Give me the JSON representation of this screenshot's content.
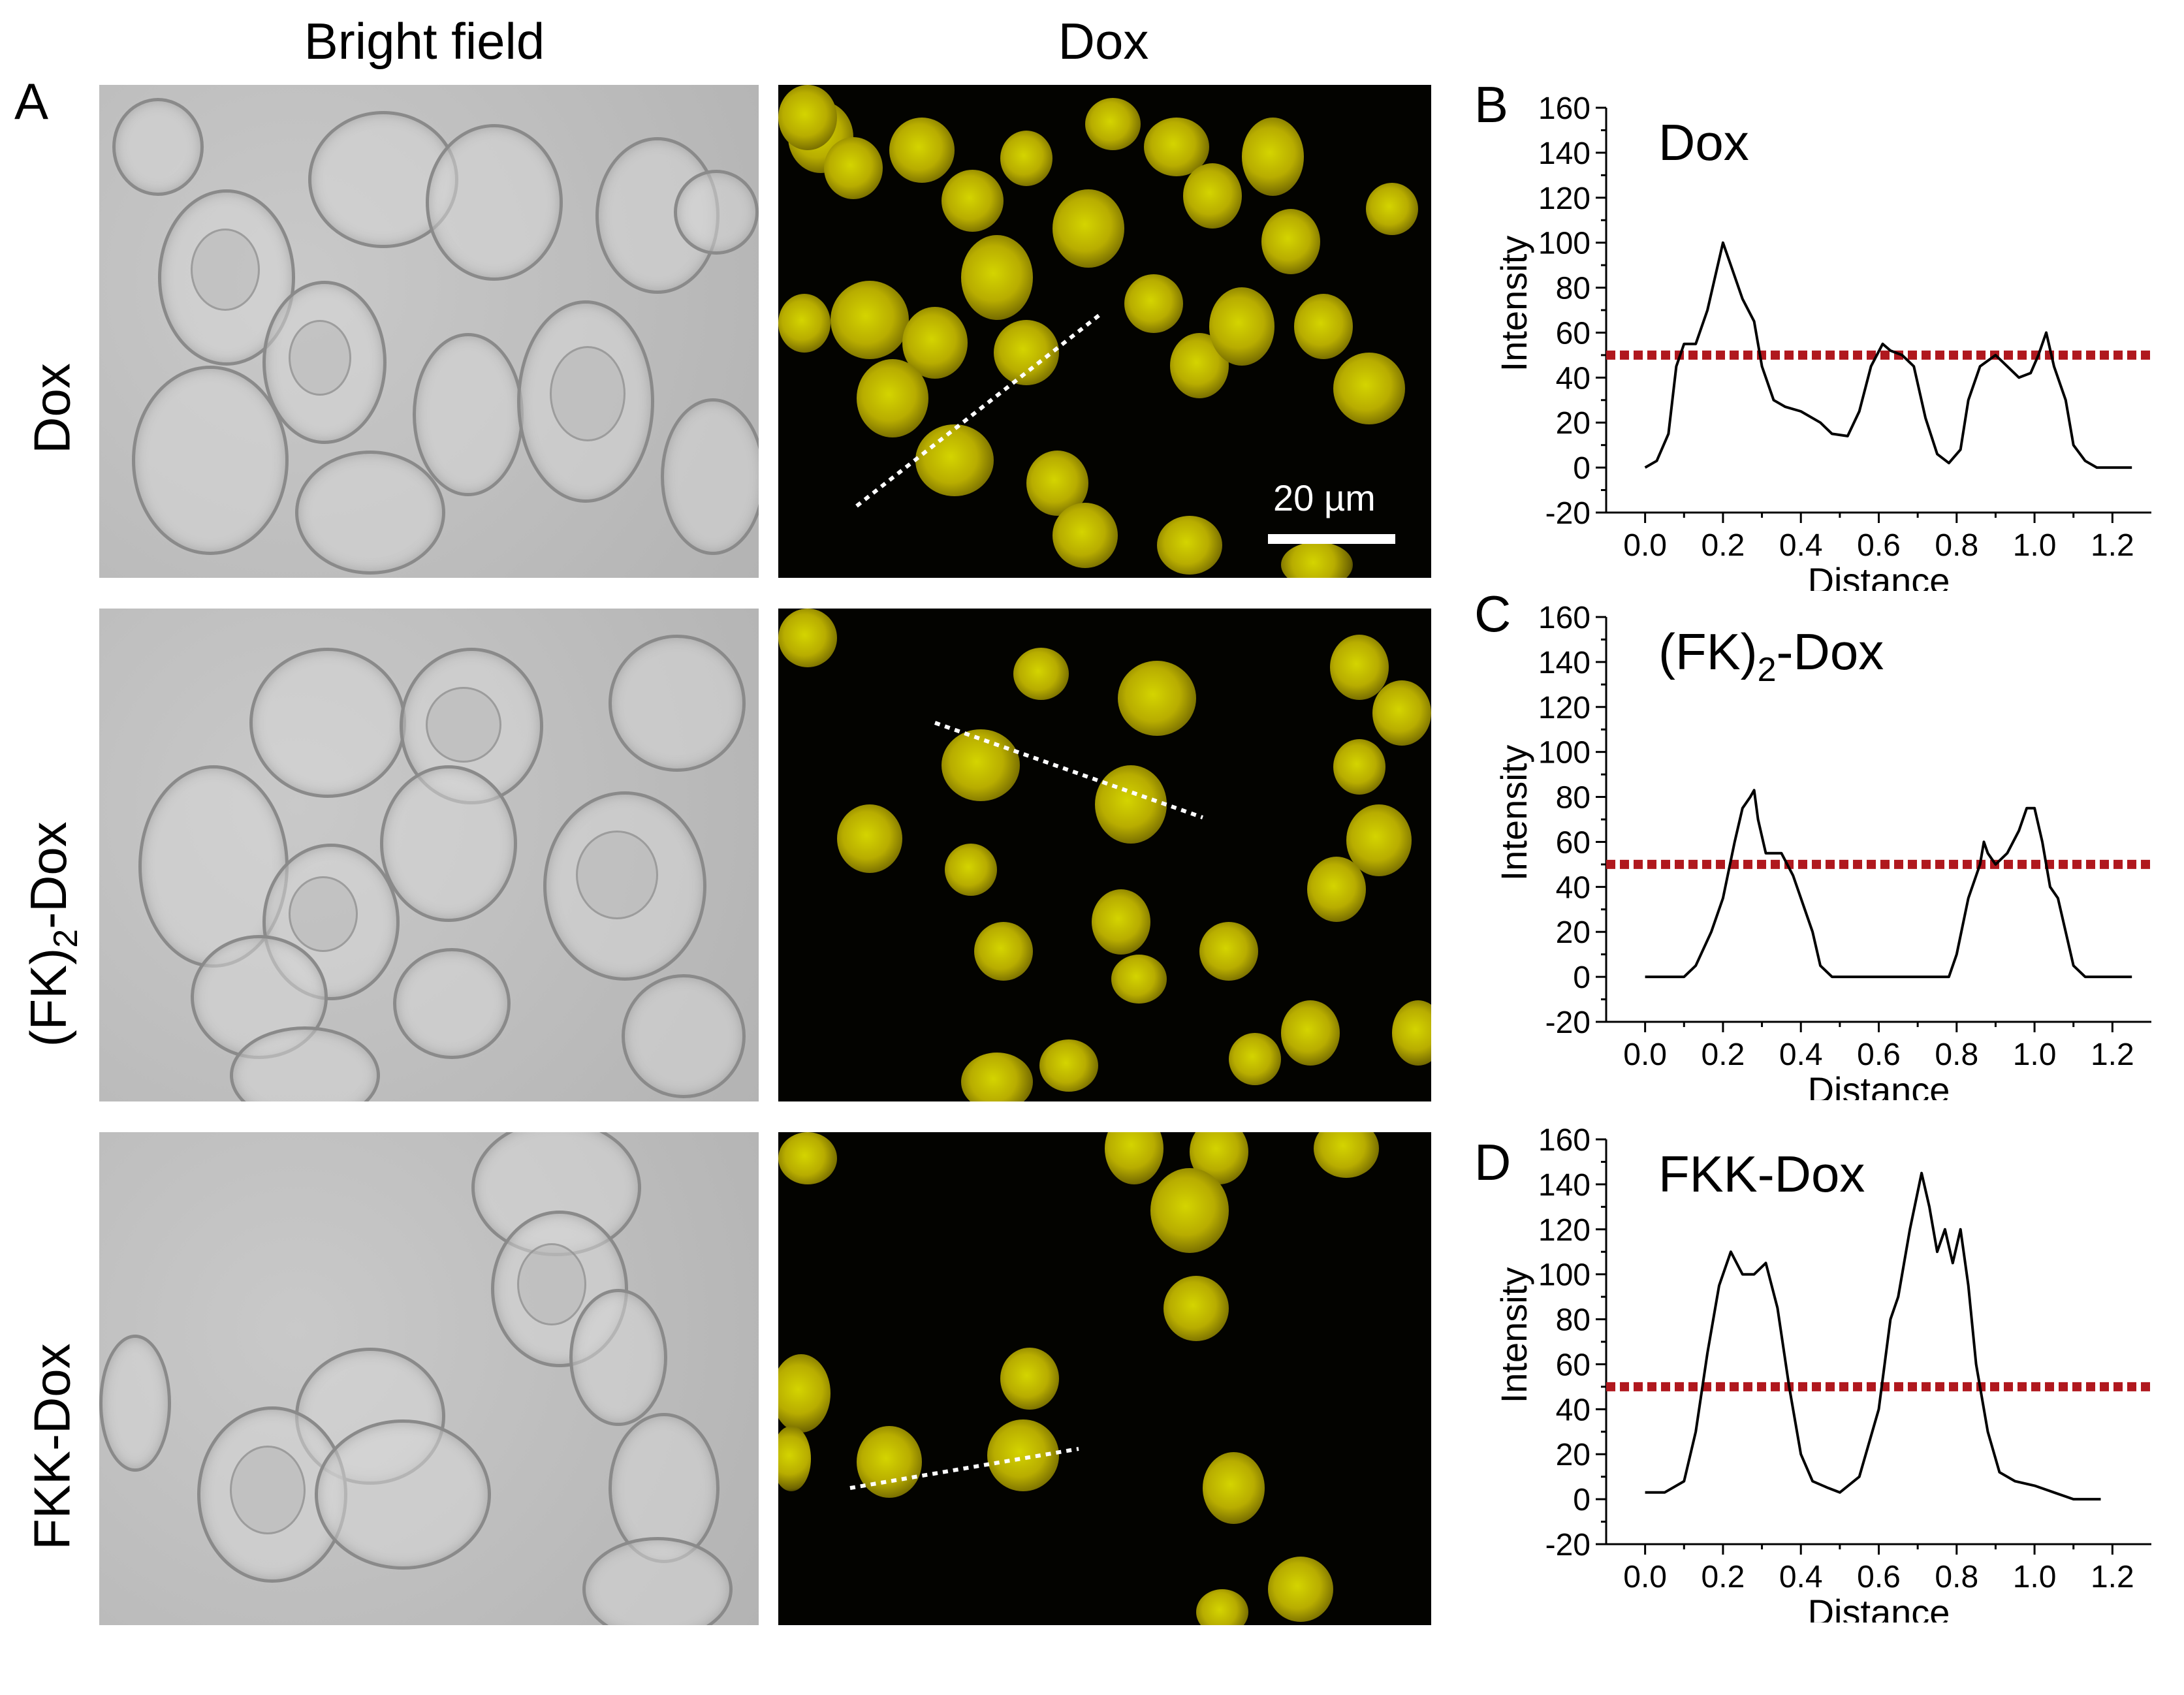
{
  "figure": {
    "column_headers": [
      "Bright field",
      "Dox"
    ],
    "row_labels": [
      "Dox",
      "(FK)2-Dox",
      "FKK-Dox"
    ],
    "row_label_main": [
      "Dox",
      "(FK)",
      "FKK-Dox"
    ],
    "row_label_sub": [
      "",
      "2",
      ""
    ],
    "row_label_tail": [
      "",
      "-Dox",
      ""
    ],
    "panel_letters": [
      "A",
      "B",
      "C",
      "D"
    ],
    "scale_bar_label": "20 µm",
    "colors": {
      "fluorescence": "#d4d400",
      "threshold": "#b0181e",
      "trace": "#000000"
    }
  },
  "chart_data": [
    {
      "type": "line",
      "panel": "B",
      "title": "Dox",
      "xlabel": "Distance",
      "ylabel": "Intensity",
      "xlim": [
        -0.1,
        1.3
      ],
      "ylim": [
        -20,
        160
      ],
      "xticks": [
        "0.0",
        "0.2",
        "0.4",
        "0.6",
        "0.8",
        "1.0",
        "1.2"
      ],
      "yticks": [
        "-20",
        "0",
        "20",
        "40",
        "60",
        "80",
        "100",
        "120",
        "140",
        "160"
      ],
      "threshold": 50,
      "x": [
        0.0,
        0.03,
        0.06,
        0.08,
        0.1,
        0.13,
        0.16,
        0.18,
        0.2,
        0.22,
        0.25,
        0.28,
        0.3,
        0.33,
        0.36,
        0.4,
        0.45,
        0.48,
        0.52,
        0.55,
        0.58,
        0.61,
        0.63,
        0.66,
        0.69,
        0.72,
        0.75,
        0.78,
        0.81,
        0.83,
        0.86,
        0.9,
        0.93,
        0.96,
        0.99,
        1.01,
        1.03,
        1.05,
        1.08,
        1.1,
        1.13,
        1.16,
        1.25
      ],
      "y": [
        0,
        3,
        15,
        45,
        55,
        55,
        70,
        85,
        100,
        90,
        75,
        65,
        45,
        30,
        27,
        25,
        20,
        15,
        14,
        25,
        45,
        55,
        52,
        50,
        45,
        22,
        6,
        2,
        8,
        30,
        45,
        50,
        45,
        40,
        42,
        50,
        60,
        45,
        30,
        10,
        3,
        0,
        0
      ]
    },
    {
      "type": "line",
      "panel": "C",
      "title": "(FK)2-Dox",
      "title_main": "(FK)",
      "title_sub": "2",
      "title_tail": "-Dox",
      "xlabel": "Distance",
      "ylabel": "Intensity",
      "xlim": [
        -0.1,
        1.3
      ],
      "ylim": [
        -20,
        160
      ],
      "xticks": [
        "0.0",
        "0.2",
        "0.4",
        "0.6",
        "0.8",
        "1.0",
        "1.2"
      ],
      "yticks": [
        "-20",
        "0",
        "20",
        "40",
        "60",
        "80",
        "100",
        "120",
        "140",
        "160"
      ],
      "threshold": 50,
      "x": [
        0.0,
        0.1,
        0.13,
        0.17,
        0.2,
        0.23,
        0.25,
        0.27,
        0.28,
        0.29,
        0.31,
        0.33,
        0.35,
        0.38,
        0.41,
        0.43,
        0.45,
        0.48,
        0.55,
        0.7,
        0.78,
        0.8,
        0.83,
        0.86,
        0.87,
        0.88,
        0.9,
        0.93,
        0.96,
        0.98,
        1.0,
        1.02,
        1.04,
        1.06,
        1.08,
        1.1,
        1.13,
        1.25
      ],
      "y": [
        0,
        0,
        5,
        20,
        35,
        60,
        75,
        80,
        83,
        70,
        55,
        55,
        55,
        45,
        30,
        20,
        5,
        0,
        0,
        0,
        0,
        10,
        35,
        50,
        60,
        55,
        50,
        55,
        65,
        75,
        75,
        60,
        40,
        35,
        20,
        5,
        0,
        0
      ]
    },
    {
      "type": "line",
      "panel": "D",
      "title": "FKK-Dox",
      "xlabel": "Distance",
      "ylabel": "Intensity",
      "xlim": [
        -0.1,
        1.3
      ],
      "ylim": [
        -20,
        160
      ],
      "xticks": [
        "0.0",
        "0.2",
        "0.4",
        "0.6",
        "0.8",
        "1.0",
        "1.2"
      ],
      "yticks": [
        "-20",
        "0",
        "20",
        "40",
        "60",
        "80",
        "100",
        "120",
        "140",
        "160"
      ],
      "threshold": 50,
      "x": [
        0.0,
        0.05,
        0.1,
        0.13,
        0.16,
        0.19,
        0.22,
        0.25,
        0.28,
        0.31,
        0.34,
        0.37,
        0.4,
        0.43,
        0.47,
        0.5,
        0.55,
        0.6,
        0.63,
        0.65,
        0.68,
        0.71,
        0.73,
        0.75,
        0.77,
        0.79,
        0.81,
        0.83,
        0.85,
        0.88,
        0.91,
        0.95,
        1.0,
        1.05,
        1.1,
        1.17
      ],
      "y": [
        3,
        3,
        8,
        30,
        65,
        95,
        110,
        100,
        100,
        105,
        85,
        50,
        20,
        8,
        5,
        3,
        10,
        40,
        80,
        90,
        120,
        145,
        130,
        110,
        120,
        105,
        120,
        95,
        60,
        30,
        12,
        8,
        6,
        3,
        0,
        0
      ]
    }
  ]
}
